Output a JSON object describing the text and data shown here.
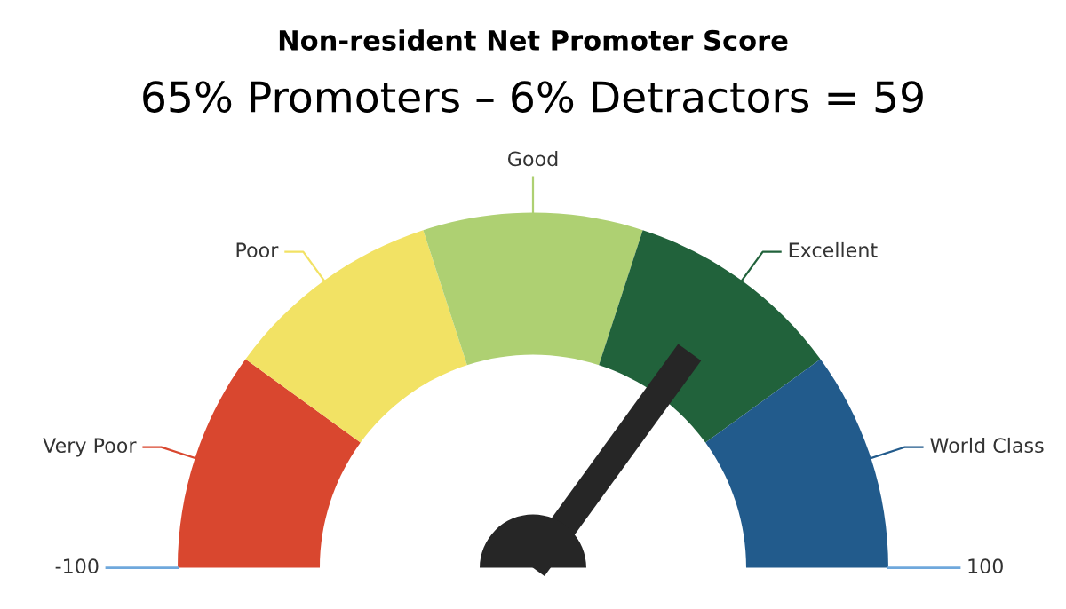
{
  "chart_data": {
    "type": "donut",
    "title": "Non-resident Net Promoter Score",
    "subtitle": "65% Promoters – 6% Detractors = 59",
    "categories": [
      "Very Poor",
      "Poor",
      "Good",
      "Excellent",
      "World Class"
    ],
    "values": [
      20,
      20,
      20,
      20,
      20
    ],
    "colors": [
      "#d9472f",
      "#f2e264",
      "#aed072",
      "#21623b",
      "#225b8c"
    ],
    "needle": "Excellent",
    "annotations": [
      "-100",
      "100"
    ]
  }
}
